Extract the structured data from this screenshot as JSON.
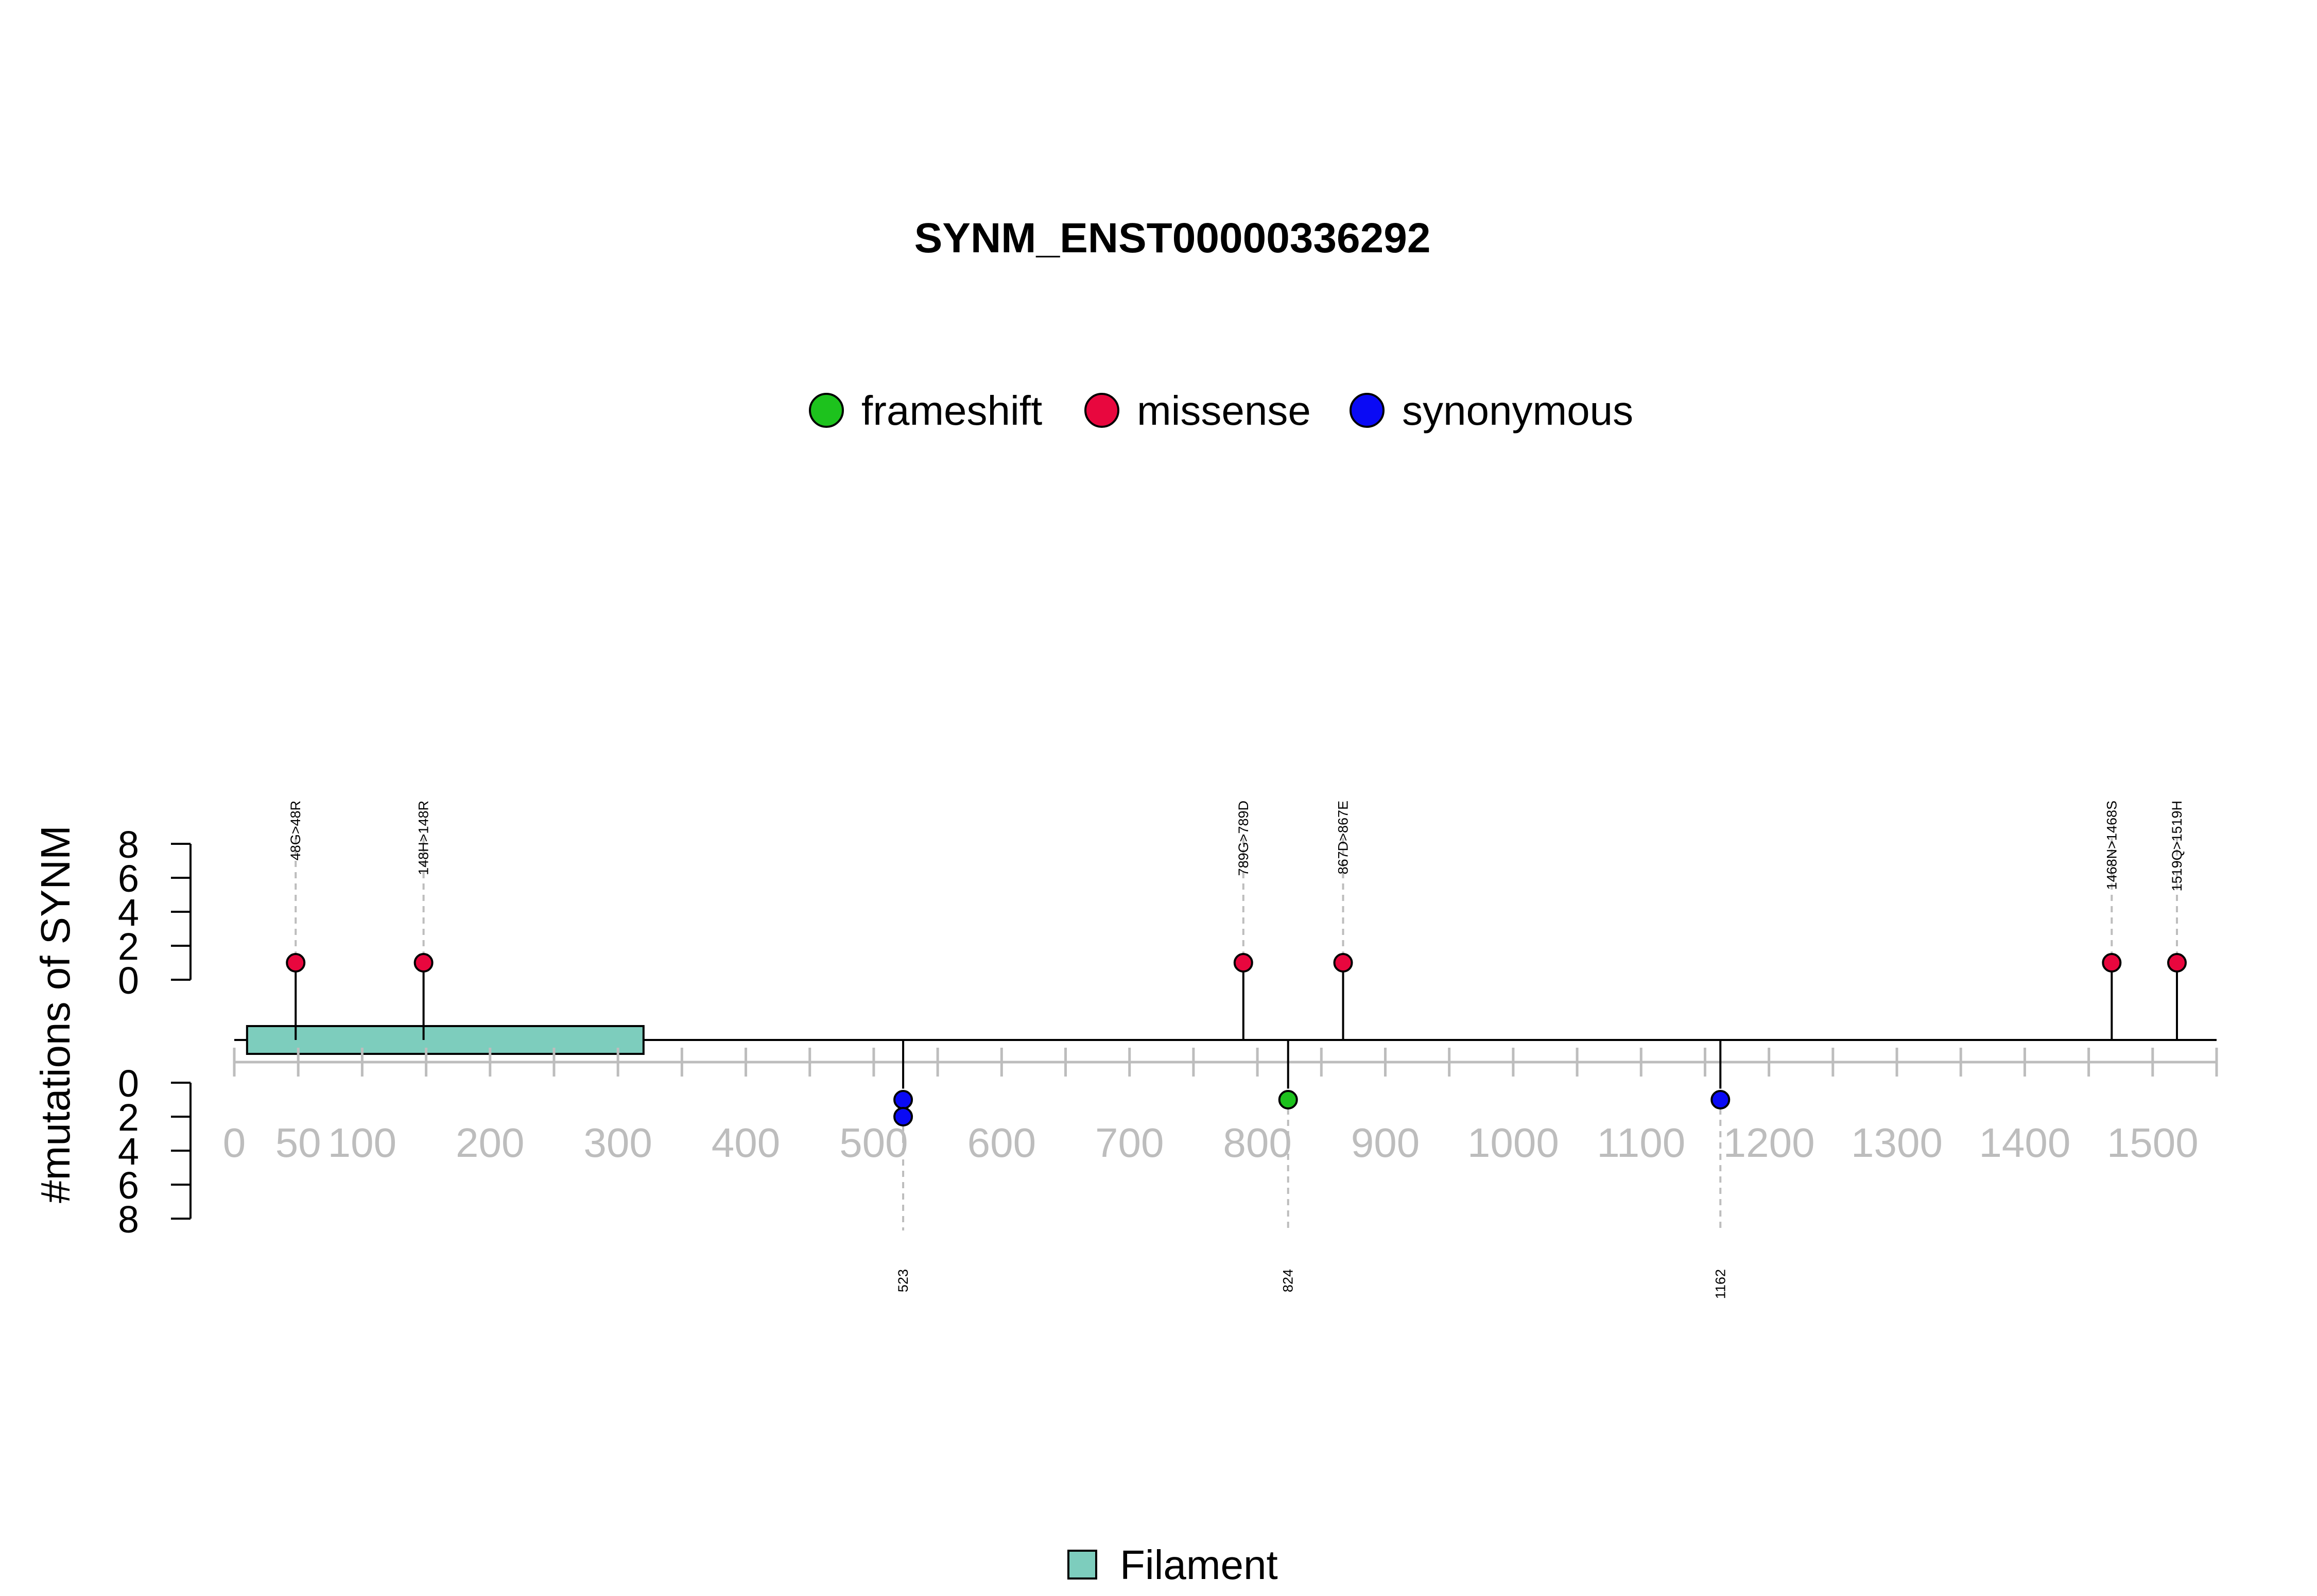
{
  "chart_data": {
    "type": "lollipop",
    "title": "SYNM_ENST00000336292",
    "ylabel": "#mutations of SYNM",
    "xlim": [
      0,
      1550
    ],
    "x_ticks": [
      0,
      50,
      100,
      200,
      300,
      400,
      500,
      600,
      700,
      800,
      900,
      1000,
      1100,
      1200,
      1300,
      1400,
      1500
    ],
    "x_minor_step": 50,
    "ylim_top": [
      0,
      8
    ],
    "ylim_bottom": [
      0,
      8
    ],
    "y_ticks": [
      0,
      2,
      4,
      6,
      8
    ],
    "legend": {
      "placement": "top-center",
      "items": [
        {
          "name": "frameshift",
          "color": "#1dc21d"
        },
        {
          "name": "missense",
          "color": "#e8073e"
        },
        {
          "name": "synonymous",
          "color": "#0a0af5"
        }
      ]
    },
    "domains": [
      {
        "name": "Filament",
        "start": 10,
        "end": 320,
        "color": "#7dcdbd"
      }
    ],
    "domain_legend": {
      "placement": "bottom-center"
    },
    "mutations_top": [
      {
        "pos": 48,
        "count": 1,
        "type": "missense",
        "label": "48G>48R"
      },
      {
        "pos": 148,
        "count": 1,
        "type": "missense",
        "label": "148H>148R"
      },
      {
        "pos": 789,
        "count": 1,
        "type": "missense",
        "label": "789G>789D"
      },
      {
        "pos": 867,
        "count": 1,
        "type": "missense",
        "label": "867D>867E"
      },
      {
        "pos": 1468,
        "count": 1,
        "type": "missense",
        "label": "1468N>1468S"
      },
      {
        "pos": 1519,
        "count": 1,
        "type": "missense",
        "label": "1519Q>1519H"
      }
    ],
    "mutations_bottom": [
      {
        "pos": 523,
        "count": 2,
        "type": "synonymous",
        "label": "523"
      },
      {
        "pos": 824,
        "count": 1,
        "type": "frameshift",
        "label": "824"
      },
      {
        "pos": 1162,
        "count": 1,
        "type": "synonymous",
        "label": "1162"
      }
    ]
  }
}
